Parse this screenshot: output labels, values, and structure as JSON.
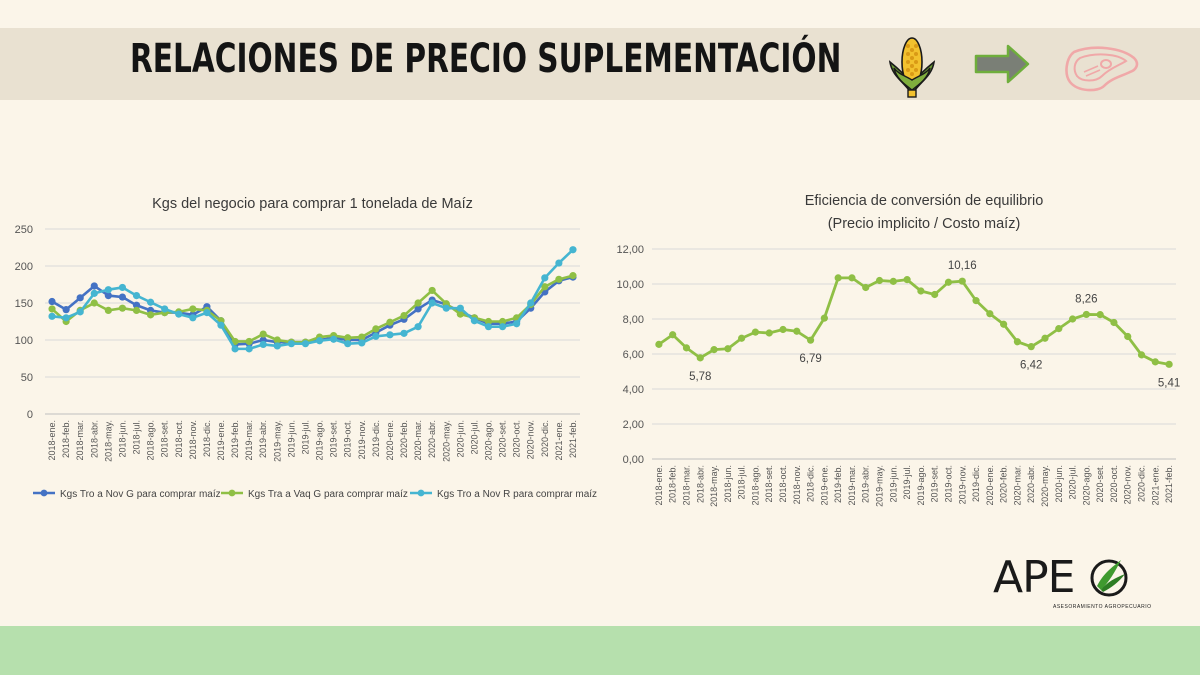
{
  "header": {
    "title": "RELACIONES DE PRECIO SUPLEMENTACIÓN"
  },
  "icons": {
    "corn": "corn-icon",
    "arrow": "arrow-right-icon",
    "meat": "steak-icon"
  },
  "logo": {
    "text": "APE",
    "subtitle": "ASESORAMIENTO AGROPECUARIO"
  },
  "colors": {
    "series1": "#4472c4",
    "series2": "#8fbf45",
    "series3": "#45b5d1",
    "line": "#8fbf45",
    "band": "#b6e0ad"
  },
  "chart_data": [
    {
      "type": "line",
      "title": "Kgs del negocio para comprar 1 tonelada de Maíz",
      "categories": [
        "2018-ene.",
        "2018-feb.",
        "2018-mar.",
        "2018-abr.",
        "2018-may.",
        "2018-jun.",
        "2018-jul.",
        "2018-ago.",
        "2018-set.",
        "2018-oct.",
        "2018-nov.",
        "2018-dic.",
        "2019-ene.",
        "2019-feb.",
        "2019-mar.",
        "2019-abr.",
        "2019-may.",
        "2019-jun.",
        "2019-jul.",
        "2019-ago.",
        "2019-set.",
        "2019-oct.",
        "2019-nov.",
        "2019-dic.",
        "2020-ene.",
        "2020-feb.",
        "2020-mar.",
        "2020-abr.",
        "2020-may.",
        "2020-jun.",
        "2020-jul.",
        "2020-ago.",
        "2020-set.",
        "2020-oct.",
        "2020-nov.",
        "2020-dic.",
        "2021-ene.",
        "2021-feb."
      ],
      "ylim": [
        0,
        250
      ],
      "yticks": [
        "0",
        "50",
        "100",
        "150",
        "200",
        "250"
      ],
      "series": [
        {
          "name": "Kgs Tro a Nov G para comprar maíz",
          "values": [
            152,
            141,
            157,
            173,
            160,
            158,
            147,
            140,
            137,
            137,
            134,
            145,
            126,
            94,
            95,
            100,
            97,
            97,
            97,
            100,
            103,
            100,
            100,
            110,
            120,
            128,
            142,
            154,
            148,
            138,
            130,
            122,
            122,
            125,
            143,
            165,
            180,
            185
          ]
        },
        {
          "name": "Kgs Tra a Vaq G para comprar maíz",
          "values": [
            142,
            125,
            140,
            150,
            140,
            143,
            140,
            134,
            137,
            138,
            142,
            140,
            126,
            98,
            98,
            108,
            100,
            97,
            97,
            104,
            106,
            103,
            104,
            115,
            124,
            133,
            150,
            167,
            149,
            135,
            130,
            125,
            125,
            130,
            148,
            172,
            182,
            187
          ]
        },
        {
          "name": "Kgs Tro a Nov R para comprar maíz",
          "values": [
            132,
            130,
            138,
            163,
            168,
            171,
            160,
            151,
            142,
            135,
            130,
            137,
            120,
            88,
            88,
            94,
            92,
            95,
            95,
            99,
            101,
            95,
            96,
            105,
            107,
            109,
            118,
            150,
            143,
            143,
            126,
            118,
            118,
            122,
            150,
            184,
            204,
            222
          ]
        }
      ]
    },
    {
      "type": "line",
      "title": "Eficiencia de conversión de equilibrio",
      "subtitle": "(Precio implicito  / Costo maíz)",
      "categories": [
        "2018-ene.",
        "2018-feb.",
        "2018-mar.",
        "2018-abr.",
        "2018-may.",
        "2018-jun.",
        "2018-jul.",
        "2018-ago.",
        "2018-set.",
        "2018-oct.",
        "2018-nov.",
        "2018-dic.",
        "2019-ene.",
        "2019-feb.",
        "2019-mar.",
        "2019-abr.",
        "2019-may.",
        "2019-jun.",
        "2019-jul.",
        "2019-ago.",
        "2019-set.",
        "2019-oct.",
        "2019-nov.",
        "2019-dic.",
        "2020-ene.",
        "2020-feb.",
        "2020-mar.",
        "2020-abr.",
        "2020-may.",
        "2020-jun.",
        "2020-jul.",
        "2020-ago.",
        "2020-set.",
        "2020-oct.",
        "2020-nov.",
        "2020-dic.",
        "2021-ene.",
        "2021-feb."
      ],
      "ylim": [
        0,
        12
      ],
      "yticks": [
        "0,00",
        "2,00",
        "4,00",
        "6,00",
        "8,00",
        "10,00",
        "12,00"
      ],
      "values": [
        6.55,
        7.1,
        6.35,
        5.78,
        6.25,
        6.3,
        6.9,
        7.25,
        7.2,
        7.4,
        7.3,
        6.79,
        8.05,
        10.35,
        10.35,
        9.8,
        10.2,
        10.15,
        10.25,
        9.6,
        9.4,
        10.1,
        10.16,
        9.05,
        8.3,
        7.7,
        6.7,
        6.42,
        6.9,
        7.45,
        8.0,
        8.26,
        8.25,
        7.8,
        7.0,
        5.95,
        5.55,
        5.41
      ],
      "annotations": [
        {
          "index": 3,
          "label": "5,78"
        },
        {
          "index": 11,
          "label": "6,79"
        },
        {
          "index": 22,
          "label": "10,16"
        },
        {
          "index": 27,
          "label": "6,42"
        },
        {
          "index": 31,
          "label": "8,26"
        },
        {
          "index": 37,
          "label": "5,41"
        }
      ]
    }
  ]
}
